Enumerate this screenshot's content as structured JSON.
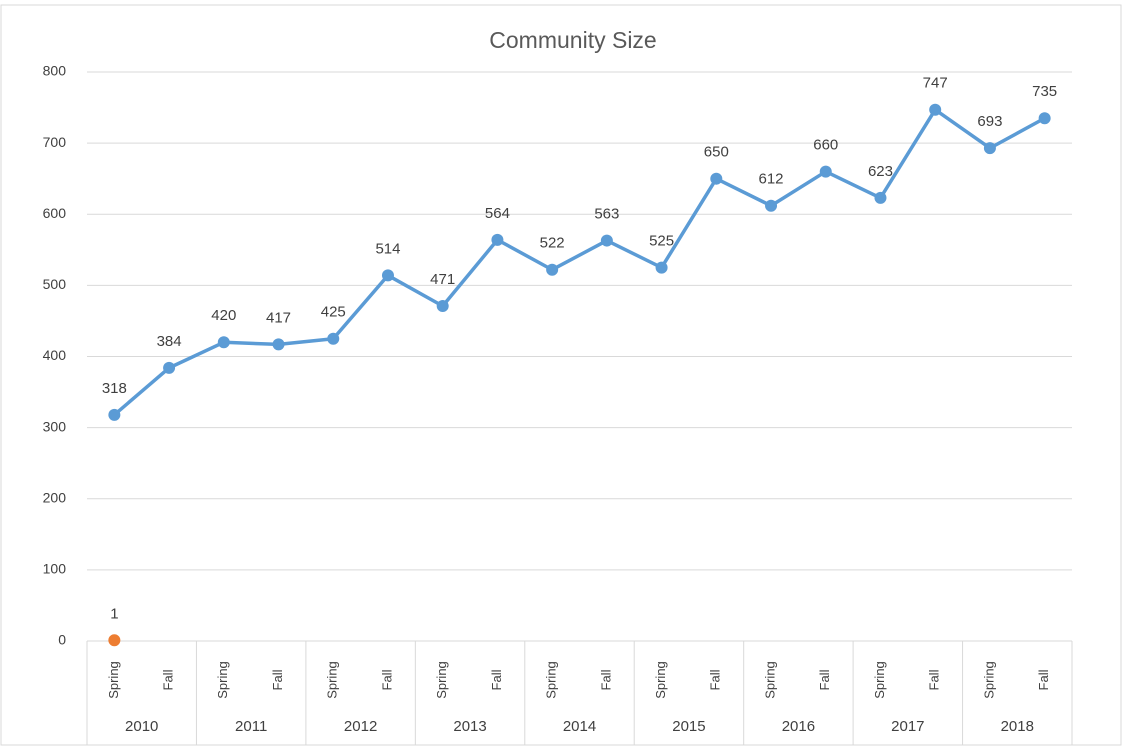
{
  "chart_data": {
    "type": "line",
    "title": "Community Size",
    "categories": [
      "Spring",
      "Fall",
      "Spring",
      "Fall",
      "Spring",
      "Fall",
      "Spring",
      "Fall",
      "Spring",
      "Fall",
      "Spring",
      "Fall",
      "Spring",
      "Fall",
      "Spring",
      "Fall",
      "Spring",
      "Fall"
    ],
    "groups": [
      "2010",
      "2011",
      "2012",
      "2013",
      "2014",
      "2015",
      "2016",
      "2017",
      "2018"
    ],
    "series": [
      {
        "color": "#5b9bd5",
        "values": [
          318,
          384,
          420,
          417,
          425,
          514,
          471,
          564,
          522,
          563,
          525,
          650,
          612,
          660,
          623,
          747,
          693,
          735
        ]
      },
      {
        "color": "#ed7d31",
        "values": [
          1,
          null,
          null,
          null,
          null,
          null,
          null,
          null,
          null,
          null,
          null,
          null,
          null,
          null,
          null,
          null,
          null,
          null
        ]
      }
    ],
    "ylim": [
      0,
      800
    ],
    "yticks": [
      0,
      100,
      200,
      300,
      400,
      500,
      600,
      700,
      800
    ],
    "grid": true
  }
}
